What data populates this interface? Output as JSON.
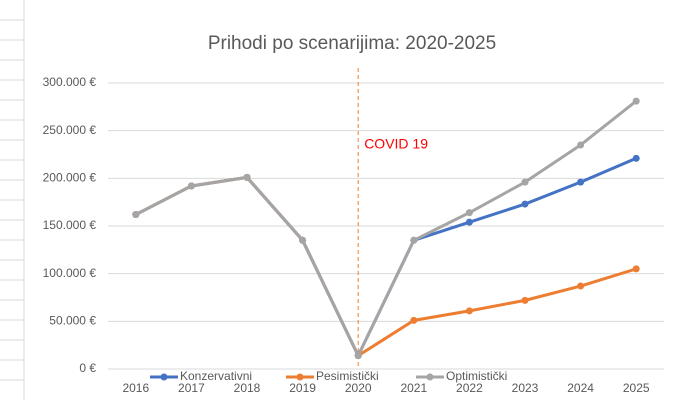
{
  "chart_data": {
    "type": "line",
    "title": "Prihodi po scenarijima: 2020-2025",
    "categories": [
      "2016",
      "2017",
      "2018",
      "2019",
      "2020",
      "2021",
      "2022",
      "2023",
      "2024",
      "2025"
    ],
    "series": [
      {
        "name": "Konzervativni",
        "color": "#4472c4",
        "values": [
          162000,
          192000,
          201000,
          135000,
          14000,
          135000,
          154000,
          173000,
          196000,
          221000
        ]
      },
      {
        "name": "Pesimistički",
        "color": "#ed7d31",
        "values": [
          162000,
          192000,
          201000,
          135000,
          14000,
          51000,
          61000,
          72000,
          87000,
          105000
        ]
      },
      {
        "name": "Optimistički",
        "color": "#a5a5a5",
        "values": [
          162000,
          192000,
          201000,
          135000,
          14000,
          135000,
          164000,
          196000,
          235000,
          281000
        ]
      }
    ],
    "ylim": [
      0,
      300000
    ],
    "yticks": [
      {
        "value": 0,
        "label": "0 €"
      },
      {
        "value": 50000,
        "label": "50.000 €"
      },
      {
        "value": 100000,
        "label": "100.000 €"
      },
      {
        "value": 150000,
        "label": "150.000 €"
      },
      {
        "value": 200000,
        "label": "200.000 €"
      },
      {
        "value": 250000,
        "label": "250.000 €"
      },
      {
        "value": 300000,
        "label": "300.000 €"
      }
    ],
    "grid": true,
    "annotation": {
      "text": "COVID 19",
      "category": 4,
      "color": "#ff0000",
      "line_color": "#ed7d31"
    },
    "legend": "bottom"
  }
}
